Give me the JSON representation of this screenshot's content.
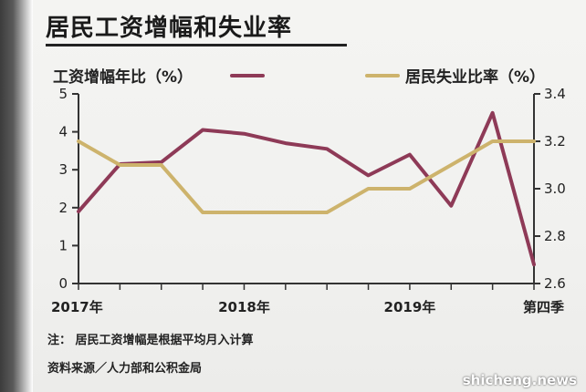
{
  "title": "居民工资增幅和失业率",
  "legend": {
    "wage": "工资增幅年比（%）",
    "unemployment": "居民失业比率（%）"
  },
  "notes": {
    "line1": "注：  居民工资增幅是根据平均月入计算",
    "line2": "资料来源／人力部和公积金局"
  },
  "watermark": "shicheng.news",
  "colors": {
    "wage": "#8e3a57",
    "unemployment": "#cdb36c",
    "axis": "#333333"
  },
  "chart_data": {
    "type": "line",
    "x_tick_labels": [
      "2017年",
      "2018年",
      "2019年",
      "第四季"
    ],
    "left_axis": {
      "ylim": [
        0,
        5
      ],
      "ticks": [
        "0",
        "1",
        "2",
        "3",
        "4",
        "5"
      ]
    },
    "right_axis": {
      "ylim": [
        2.6,
        3.4
      ],
      "ticks": [
        "2.6",
        "2.8",
        "3.0",
        "3.2",
        "3.4"
      ]
    },
    "periods": 12,
    "series": [
      {
        "name": "工资增幅年比（%）",
        "axis": "left",
        "x": [
          0,
          1,
          2,
          3,
          4,
          5,
          6,
          7,
          8,
          9,
          10,
          11
        ],
        "values": [
          1.9,
          3.15,
          3.2,
          4.05,
          3.95,
          3.7,
          3.55,
          2.85,
          3.4,
          2.05,
          4.5,
          0.5
        ]
      },
      {
        "name": "居民失业比率（%）",
        "axis": "right",
        "x": [
          0,
          1,
          2,
          3,
          4,
          5,
          6,
          7,
          8,
          9,
          10,
          11
        ],
        "values": [
          3.2,
          3.1,
          3.1,
          2.9,
          2.9,
          2.9,
          2.9,
          3.0,
          3.0,
          3.1,
          3.2,
          3.2
        ]
      }
    ]
  }
}
